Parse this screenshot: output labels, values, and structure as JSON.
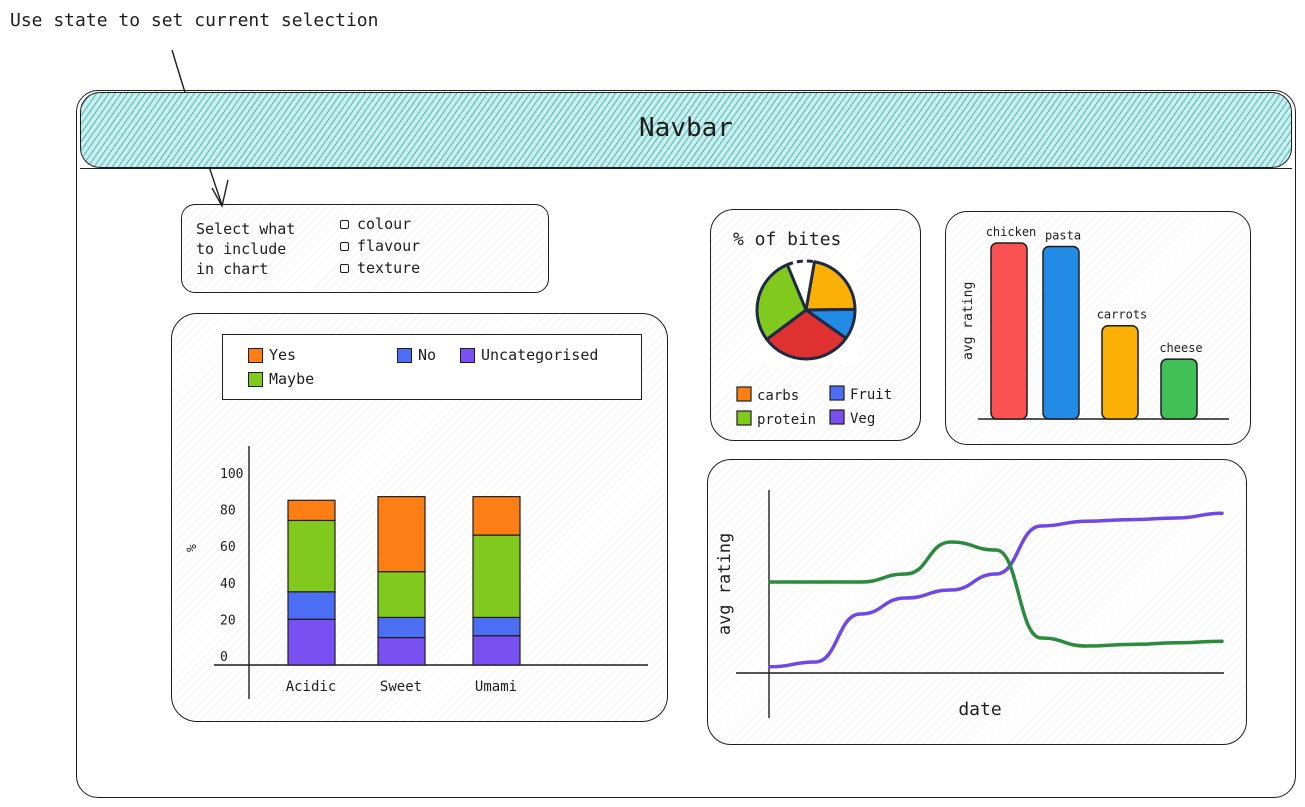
{
  "annotation": {
    "text": "Use state to set current selection"
  },
  "navbar": {
    "label": "Navbar"
  },
  "selector": {
    "prompt_lines": [
      "Select what",
      "to include",
      "in chart"
    ],
    "options": [
      "colour",
      "flavour",
      "texture"
    ]
  },
  "stacked_chart": {
    "legend": {
      "yes": "Yes",
      "no": "No",
      "uncategorised": "Uncategorised",
      "maybe": "Maybe"
    },
    "colors": {
      "Yes": "#fd7e14",
      "No": "#4c6ef5",
      "Uncategorised": "#7950f2",
      "Maybe": "#82c91e"
    }
  },
  "pie_chart": {
    "colors": {
      "carbs": "#fab005",
      "Fruit": "#228be6",
      "protein": "#82c91e",
      "Veg": "#e03131"
    },
    "legend_colors": {
      "carbs": "#fd7e14",
      "Fruit": "#4c6ef5",
      "protein": "#82c91e",
      "Veg": "#7950f2"
    }
  },
  "bar_chart": {
    "colors": {
      "chicken": "#fa5252",
      "pasta": "#228be6",
      "carrots": "#fab005",
      "cheese": "#40c057"
    }
  },
  "line_chart": {
    "colors": {
      "purple": "#7048e8",
      "green": "#2b8a3e"
    }
  },
  "chart_data": [
    {
      "type": "bar",
      "stacked": true,
      "categories": [
        "Acidic",
        "Sweet",
        "Umami"
      ],
      "series": [
        {
          "name": "Uncategorised",
          "values": [
            25,
            15,
            16
          ]
        },
        {
          "name": "No",
          "values": [
            15,
            11,
            10
          ]
        },
        {
          "name": "Maybe",
          "values": [
            39,
            25,
            45
          ]
        },
        {
          "name": "Yes",
          "values": [
            11,
            41,
            21
          ]
        }
      ],
      "ylabel": "%",
      "yticks": [
        0,
        20,
        40,
        60,
        80,
        100
      ],
      "ylim": [
        0,
        100
      ],
      "grid": false,
      "legend_position": "top"
    },
    {
      "type": "pie",
      "title": "% of bites",
      "labels": [
        "carbs",
        "Fruit",
        "protein",
        "Veg"
      ],
      "values": [
        22,
        10,
        29,
        30
      ],
      "legend_position": "bottom"
    },
    {
      "type": "bar",
      "categories": [
        "chicken",
        "pasta",
        "carrots",
        "cheese"
      ],
      "values": [
        100,
        98,
        53,
        34
      ],
      "ylabel": "avg rating",
      "grid": false
    },
    {
      "type": "line",
      "xlabel": "date",
      "ylabel": "avg rating",
      "x": [
        0,
        1,
        2,
        3,
        4,
        5,
        6,
        7,
        8,
        9,
        10
      ],
      "series": [
        {
          "values": [
            0.02,
            0.05,
            0.35,
            0.45,
            0.5,
            0.6,
            0.9,
            0.93,
            0.94,
            0.95,
            0.98
          ]
        },
        {
          "values": [
            0.55,
            0.55,
            0.55,
            0.6,
            0.8,
            0.75,
            0.2,
            0.15,
            0.16,
            0.17,
            0.18
          ]
        }
      ],
      "grid": false
    }
  ]
}
